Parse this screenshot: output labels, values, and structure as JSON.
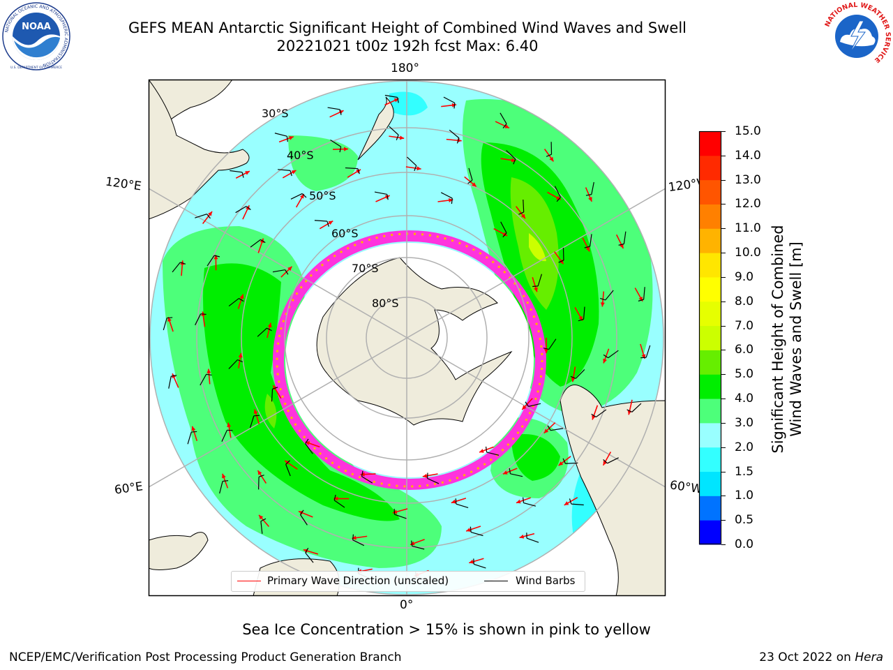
{
  "header": {
    "title_line1": "GEFS MEAN Antarctic Significant Height of Combined Wind Waves and Swell",
    "title_line2": "20221021 t00z 192h fcst   Max: 6.40"
  },
  "logos": {
    "noaa_text": "NOAA",
    "noaa_ring_text": "NATIONAL OCEANIC AND ATMOSPHERIC ADMINISTRATION",
    "noaa_ring_bottom": "U.S. DEPARTMENT OF COMMERCE",
    "nws_ring_text": "NATIONAL WEATHER SERVICE"
  },
  "map": {
    "projection": "south-polar-stereographic",
    "longitude_labels": {
      "top": "180°",
      "upper_left": "120°E",
      "upper_right": "120°W",
      "lower_left": "60°E",
      "lower_right": "60°W",
      "bottom": "0°"
    },
    "latitude_labels": [
      "30°S",
      "40°S",
      "50°S",
      "60°S",
      "70°S",
      "80°S"
    ],
    "colors": {
      "land": "#efecdc",
      "ice_shelf": "#ffffff",
      "grid": "#b0b0b0",
      "sea_ice": "#ff33dd",
      "wave_arrow": "#ff0000",
      "wind_barb": "#000000"
    }
  },
  "colorbar": {
    "label_line1": "Significant Height of Combined",
    "label_line2": "Wind Waves and Swell [m]",
    "ticks": [
      "0.0",
      "0.5",
      "1.0",
      "1.5",
      "2.0",
      "3.0",
      "4.0",
      "5.0",
      "6.0",
      "7.0",
      "8.0",
      "9.0",
      "10.0",
      "11.0",
      "12.0",
      "13.0",
      "14.0",
      "15.0"
    ],
    "colors": [
      "#0000ff",
      "#0073ff",
      "#00e5ff",
      "#33ffff",
      "#99ffff",
      "#4dff7a",
      "#00ee00",
      "#66ee00",
      "#ccff00",
      "#e6ff00",
      "#ffff00",
      "#ffe600",
      "#ffb300",
      "#ff8000",
      "#ff5500",
      "#ff2a00",
      "#ff0000"
    ]
  },
  "legend": {
    "item1": "Primary Wave Direction (unscaled)",
    "item1_color": "#ff0000",
    "item2": "Wind Barbs",
    "item2_color": "#000000"
  },
  "caption": "Sea Ice Concentration > 15% is shown in pink to yellow",
  "footer": {
    "left": "NCEP/EMC/Verification Post Processing Product Generation Branch",
    "right_date": "23 Oct 2022 on ",
    "right_machine": "Hera"
  }
}
